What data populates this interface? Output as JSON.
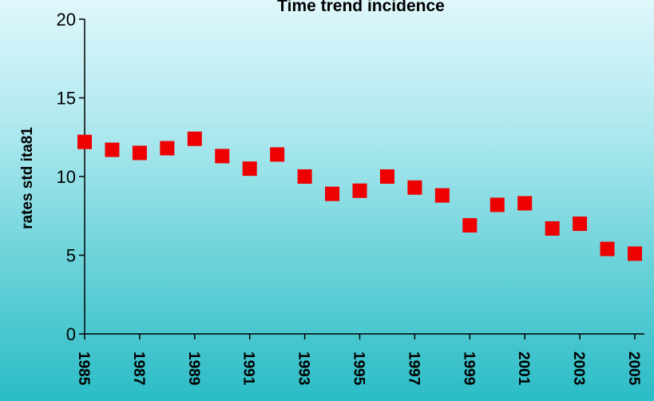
{
  "chart_data": {
    "type": "scatter",
    "title": "Time trend incidence",
    "xlabel": "",
    "ylabel": "rates std ita81",
    "ylim": [
      0,
      20
    ],
    "yticks": [
      0,
      5,
      10,
      15,
      20
    ],
    "xlim": [
      1985,
      2005
    ],
    "xticks": [
      1985,
      1987,
      1989,
      1991,
      1993,
      1995,
      1997,
      1999,
      2001,
      2003,
      2005
    ],
    "grid": false,
    "marker_color": "#ee0000",
    "series": [
      {
        "x": [
          1985,
          1986,
          1987,
          1988,
          1989,
          1990,
          1991,
          1992,
          1993,
          1994,
          1995,
          1996,
          1997,
          1998,
          1999,
          2000,
          2001,
          2002,
          2003,
          2004,
          2005
        ],
        "values": [
          12.2,
          11.7,
          11.5,
          11.8,
          12.4,
          11.3,
          10.5,
          11.4,
          10.0,
          8.9,
          9.1,
          10.0,
          9.3,
          8.8,
          6.9,
          8.2,
          8.3,
          6.7,
          7.0,
          5.4,
          5.1
        ]
      }
    ]
  }
}
